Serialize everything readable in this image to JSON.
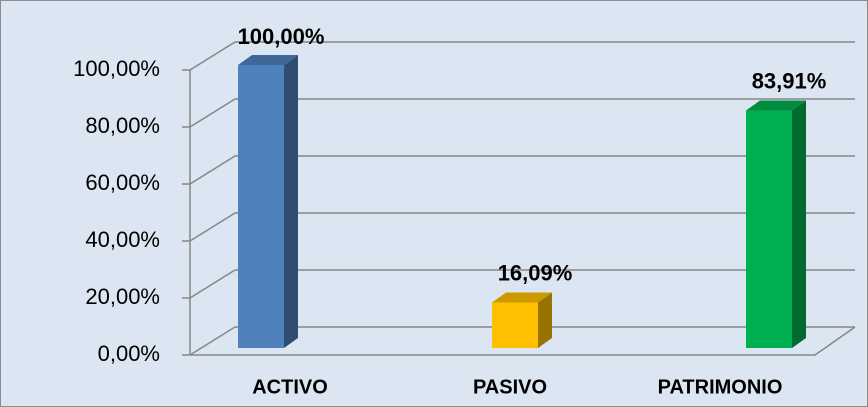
{
  "chart_data": {
    "type": "bar3d",
    "categories": [
      "ACTIVO",
      "PASIVO",
      "PATRIMONIO"
    ],
    "values": [
      100,
      16.09,
      83.91
    ],
    "value_labels": [
      "100,00%",
      "16,09%",
      "83,91%"
    ],
    "colors": [
      "#4f81bd",
      "#ffc000",
      "#00b050"
    ],
    "ylim": [
      0,
      100
    ],
    "yticks": [
      {
        "value": 0,
        "label": "0,00%"
      },
      {
        "value": 20,
        "label": "20,00%"
      },
      {
        "value": 40,
        "label": "40,00%"
      },
      {
        "value": 60,
        "label": "60,00%"
      },
      {
        "value": 80,
        "label": "80,00%"
      },
      {
        "value": 100,
        "label": "100,00%"
      }
    ],
    "grid": true
  }
}
